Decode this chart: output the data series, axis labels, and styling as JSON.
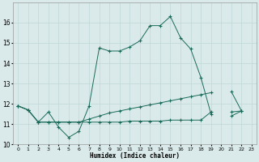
{
  "xlabel": "Humidex (Indice chaleur)",
  "x": [
    0,
    1,
    2,
    3,
    4,
    5,
    6,
    7,
    8,
    9,
    10,
    11,
    12,
    13,
    14,
    15,
    16,
    17,
    18,
    19,
    20,
    21,
    22,
    23
  ],
  "line1": [
    11.9,
    11.7,
    11.1,
    11.6,
    10.85,
    10.35,
    10.65,
    11.9,
    14.75,
    14.6,
    14.6,
    14.8,
    15.1,
    15.85,
    15.85,
    16.3,
    15.25,
    14.7,
    13.3,
    11.5,
    null,
    11.4,
    11.65,
    null
  ],
  "line2": [
    11.9,
    11.7,
    11.1,
    11.1,
    11.1,
    11.1,
    11.1,
    11.25,
    11.4,
    11.55,
    11.65,
    11.75,
    11.85,
    11.95,
    12.05,
    12.15,
    12.25,
    12.35,
    12.45,
    12.55,
    null,
    12.6,
    11.65,
    null
  ],
  "line3": [
    11.9,
    11.7,
    11.1,
    11.1,
    11.1,
    11.1,
    11.1,
    11.1,
    11.1,
    11.1,
    11.1,
    11.15,
    11.15,
    11.15,
    11.15,
    11.2,
    11.2,
    11.2,
    11.2,
    11.6,
    null,
    11.6,
    11.65,
    null
  ],
  "color": "#1a6b5a",
  "bg_color": "#daeaea",
  "grid_color": "#c0d8d8",
  "ylim": [
    10,
    17
  ],
  "yticks": [
    10,
    11,
    12,
    13,
    14,
    15,
    16
  ],
  "xlim": [
    -0.5,
    23.5
  ],
  "xticks": [
    0,
    1,
    2,
    3,
    4,
    5,
    6,
    7,
    8,
    9,
    10,
    11,
    12,
    13,
    14,
    15,
    16,
    17,
    18,
    19,
    20,
    21,
    22,
    23
  ]
}
